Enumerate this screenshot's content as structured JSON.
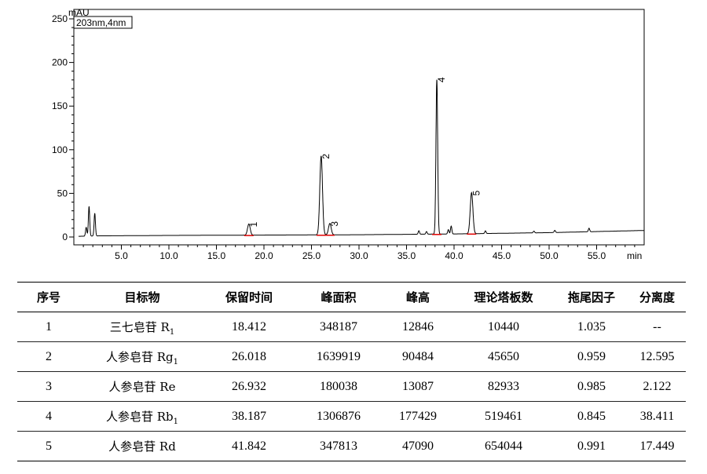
{
  "chart_data": {
    "type": "line",
    "ylabel": "mAU",
    "xlabel": "min",
    "legend": "203nm,4nm",
    "xlim": [
      0,
      60
    ],
    "ylim": [
      0,
      250
    ],
    "x_ticks": [
      "5.0",
      "10.0",
      "15.0",
      "20.0",
      "25.0",
      "30.0",
      "35.0",
      "40.0",
      "45.0",
      "50.0",
      "55.0"
    ],
    "y_ticks": [
      "0",
      "50",
      "100",
      "150",
      "200",
      "250"
    ],
    "baseline": [
      [
        0.5,
        0.8
      ],
      [
        2.5,
        1.3
      ],
      [
        10,
        1.8
      ],
      [
        20,
        2.2
      ],
      [
        30,
        2.6
      ],
      [
        40,
        3.5
      ],
      [
        50,
        5.0
      ],
      [
        60,
        7.5
      ]
    ],
    "peaks": [
      {
        "label": "1",
        "rt": 18.412,
        "height": 12.8
      },
      {
        "label": "2",
        "rt": 26.018,
        "height": 90.5
      },
      {
        "label": "3",
        "rt": 26.932,
        "height": 13.1
      },
      {
        "label": "4",
        "rt": 38.187,
        "height": 177.4
      },
      {
        "label": "5",
        "rt": 41.842,
        "height": 47.1
      }
    ],
    "minor_peaks": [
      {
        "rt": 1.3,
        "height": 10
      },
      {
        "rt": 1.6,
        "height": 34
      },
      {
        "rt": 2.2,
        "height": 26
      },
      {
        "rt": 36.3,
        "height": 4
      },
      {
        "rt": 37.1,
        "height": 3
      },
      {
        "rt": 39.4,
        "height": 5
      },
      {
        "rt": 39.7,
        "height": 9
      },
      {
        "rt": 43.3,
        "height": 3
      },
      {
        "rt": 48.4,
        "height": 2
      },
      {
        "rt": 50.6,
        "height": 2.5
      },
      {
        "rt": 54.2,
        "height": 4
      }
    ]
  },
  "table": {
    "headers": [
      "序号",
      "目标物",
      "保留时间",
      "峰面积",
      "峰高",
      "理论塔板数",
      "拖尾因子",
      "分离度"
    ],
    "rows": [
      {
        "no": "1",
        "name": "三七皂苷 R",
        "sub": "1",
        "rt": "18.412",
        "area": "348187",
        "height": "12846",
        "plates": "10440",
        "tailing": "1.035",
        "resolution": "--"
      },
      {
        "no": "2",
        "name": "人参皂苷 Rg",
        "sub": "1",
        "rt": "26.018",
        "area": "1639919",
        "height": "90484",
        "plates": "45650",
        "tailing": "0.959",
        "resolution": "12.595"
      },
      {
        "no": "3",
        "name": "人参皂苷 Re",
        "sub": "",
        "rt": "26.932",
        "area": "180038",
        "height": "13087",
        "plates": "82933",
        "tailing": "0.985",
        "resolution": "2.122"
      },
      {
        "no": "4",
        "name": "人参皂苷 Rb",
        "sub": "1",
        "rt": "38.187",
        "area": "1306876",
        "height": "177429",
        "plates": "519461",
        "tailing": "0.845",
        "resolution": "38.411"
      },
      {
        "no": "5",
        "name": "人参皂苷 Rd",
        "sub": "",
        "rt": "41.842",
        "area": "347813",
        "height": "47090",
        "plates": "654044",
        "tailing": "0.991",
        "resolution": "17.449"
      }
    ]
  }
}
